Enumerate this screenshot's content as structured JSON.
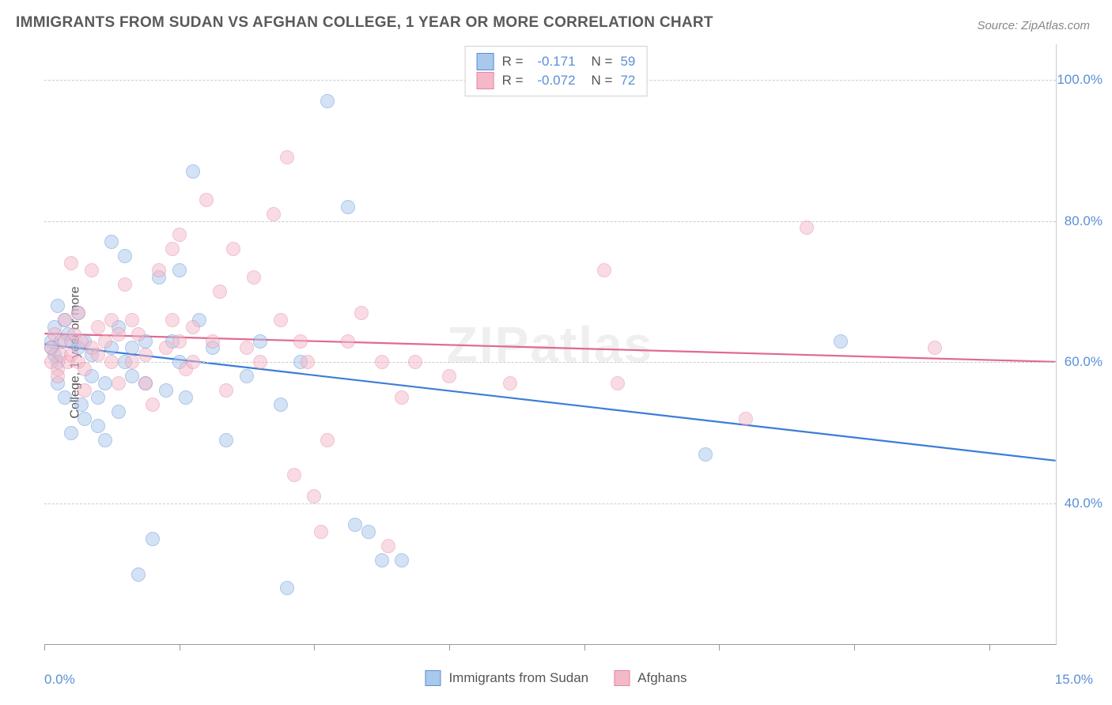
{
  "title": "IMMIGRANTS FROM SUDAN VS AFGHAN COLLEGE, 1 YEAR OR MORE CORRELATION CHART",
  "source": "Source: ZipAtlas.com",
  "watermark": "ZIPatlas",
  "y_axis_label": "College, 1 year or more",
  "chart": {
    "type": "scatter",
    "background_color": "#ffffff",
    "grid_color": "#cccccc",
    "xlim": [
      0,
      15
    ],
    "ylim": [
      20,
      105
    ],
    "y_ticks": [
      40,
      60,
      80,
      100
    ],
    "y_tick_labels": [
      "40.0%",
      "60.0%",
      "80.0%",
      "100.0%"
    ],
    "x_ticks": [
      0,
      2,
      4,
      6,
      8,
      10,
      12,
      14
    ],
    "x_tick_labels": {
      "start": "0.0%",
      "end": "15.0%"
    },
    "point_radius": 9,
    "point_opacity": 0.5,
    "series": [
      {
        "id": "sudan",
        "label": "Immigrants from Sudan",
        "R": "-0.171",
        "N": "59",
        "color_fill": "#a8c8ec",
        "color_stroke": "#5b8fd6",
        "line_color": "#3b7dd8",
        "line_width": 2.2,
        "trend": {
          "x1": 0,
          "y1": 62.5,
          "x2": 15,
          "y2": 46
        },
        "points": [
          [
            0.1,
            63
          ],
          [
            0.1,
            62
          ],
          [
            0.15,
            65
          ],
          [
            0.15,
            61
          ],
          [
            0.2,
            68
          ],
          [
            0.2,
            60
          ],
          [
            0.2,
            57
          ],
          [
            0.25,
            63
          ],
          [
            0.3,
            66
          ],
          [
            0.3,
            55
          ],
          [
            0.35,
            64
          ],
          [
            0.4,
            50
          ],
          [
            0.4,
            63
          ],
          [
            0.5,
            62
          ],
          [
            0.5,
            67
          ],
          [
            0.55,
            54
          ],
          [
            0.6,
            63
          ],
          [
            0.6,
            52
          ],
          [
            0.7,
            61
          ],
          [
            0.7,
            58
          ],
          [
            0.8,
            55
          ],
          [
            0.8,
            51
          ],
          [
            0.9,
            57
          ],
          [
            0.9,
            49
          ],
          [
            1.0,
            77
          ],
          [
            1.0,
            62
          ],
          [
            1.1,
            53
          ],
          [
            1.1,
            65
          ],
          [
            1.2,
            75
          ],
          [
            1.2,
            60
          ],
          [
            1.3,
            58
          ],
          [
            1.3,
            62
          ],
          [
            1.4,
            30
          ],
          [
            1.5,
            63
          ],
          [
            1.5,
            57
          ],
          [
            1.6,
            35
          ],
          [
            1.7,
            72
          ],
          [
            1.8,
            56
          ],
          [
            1.9,
            63
          ],
          [
            2.0,
            60
          ],
          [
            2.0,
            73
          ],
          [
            2.1,
            55
          ],
          [
            2.2,
            87
          ],
          [
            2.3,
            66
          ],
          [
            2.5,
            62
          ],
          [
            2.7,
            49
          ],
          [
            3.0,
            58
          ],
          [
            3.2,
            63
          ],
          [
            3.5,
            54
          ],
          [
            3.6,
            28
          ],
          [
            3.8,
            60
          ],
          [
            4.2,
            97
          ],
          [
            4.5,
            82
          ],
          [
            4.6,
            37
          ],
          [
            4.8,
            36
          ],
          [
            5.0,
            32
          ],
          [
            5.3,
            32
          ],
          [
            9.8,
            47
          ],
          [
            11.8,
            63
          ]
        ]
      },
      {
        "id": "afghans",
        "label": "Afghans",
        "R": "-0.072",
        "N": "72",
        "color_fill": "#f5b8c9",
        "color_stroke": "#e585a3",
        "line_color": "#e06a8f",
        "line_width": 2.2,
        "trend": {
          "x1": 0,
          "y1": 64,
          "x2": 15,
          "y2": 60
        },
        "points": [
          [
            0.1,
            62
          ],
          [
            0.1,
            60
          ],
          [
            0.15,
            64
          ],
          [
            0.2,
            59
          ],
          [
            0.2,
            58
          ],
          [
            0.25,
            61
          ],
          [
            0.3,
            63
          ],
          [
            0.3,
            66
          ],
          [
            0.35,
            60
          ],
          [
            0.4,
            74
          ],
          [
            0.4,
            61
          ],
          [
            0.45,
            64
          ],
          [
            0.5,
            60
          ],
          [
            0.5,
            67
          ],
          [
            0.55,
            63
          ],
          [
            0.6,
            56
          ],
          [
            0.6,
            59
          ],
          [
            0.7,
            62
          ],
          [
            0.7,
            73
          ],
          [
            0.8,
            61
          ],
          [
            0.8,
            65
          ],
          [
            0.9,
            63
          ],
          [
            1.0,
            60
          ],
          [
            1.0,
            66
          ],
          [
            1.1,
            57
          ],
          [
            1.1,
            64
          ],
          [
            1.2,
            71
          ],
          [
            1.3,
            60
          ],
          [
            1.3,
            66
          ],
          [
            1.4,
            64
          ],
          [
            1.5,
            57
          ],
          [
            1.5,
            61
          ],
          [
            1.6,
            54
          ],
          [
            1.7,
            73
          ],
          [
            1.8,
            62
          ],
          [
            1.9,
            66
          ],
          [
            1.9,
            76
          ],
          [
            2.0,
            78
          ],
          [
            2.0,
            63
          ],
          [
            2.1,
            59
          ],
          [
            2.2,
            65
          ],
          [
            2.2,
            60
          ],
          [
            2.4,
            83
          ],
          [
            2.5,
            63
          ],
          [
            2.6,
            70
          ],
          [
            2.7,
            56
          ],
          [
            2.8,
            76
          ],
          [
            3.0,
            62
          ],
          [
            3.1,
            72
          ],
          [
            3.2,
            60
          ],
          [
            3.4,
            81
          ],
          [
            3.5,
            66
          ],
          [
            3.6,
            89
          ],
          [
            3.7,
            44
          ],
          [
            3.8,
            63
          ],
          [
            3.9,
            60
          ],
          [
            4.0,
            41
          ],
          [
            4.1,
            36
          ],
          [
            4.2,
            49
          ],
          [
            4.5,
            63
          ],
          [
            4.7,
            67
          ],
          [
            5.0,
            60
          ],
          [
            5.1,
            34
          ],
          [
            5.3,
            55
          ],
          [
            5.5,
            60
          ],
          [
            6.0,
            58
          ],
          [
            6.9,
            57
          ],
          [
            8.3,
            73
          ],
          [
            8.5,
            57
          ],
          [
            10.4,
            52
          ],
          [
            11.3,
            79
          ],
          [
            13.2,
            62
          ]
        ]
      }
    ]
  },
  "legend_top": {
    "r_label": "R =",
    "n_label": "N ="
  }
}
